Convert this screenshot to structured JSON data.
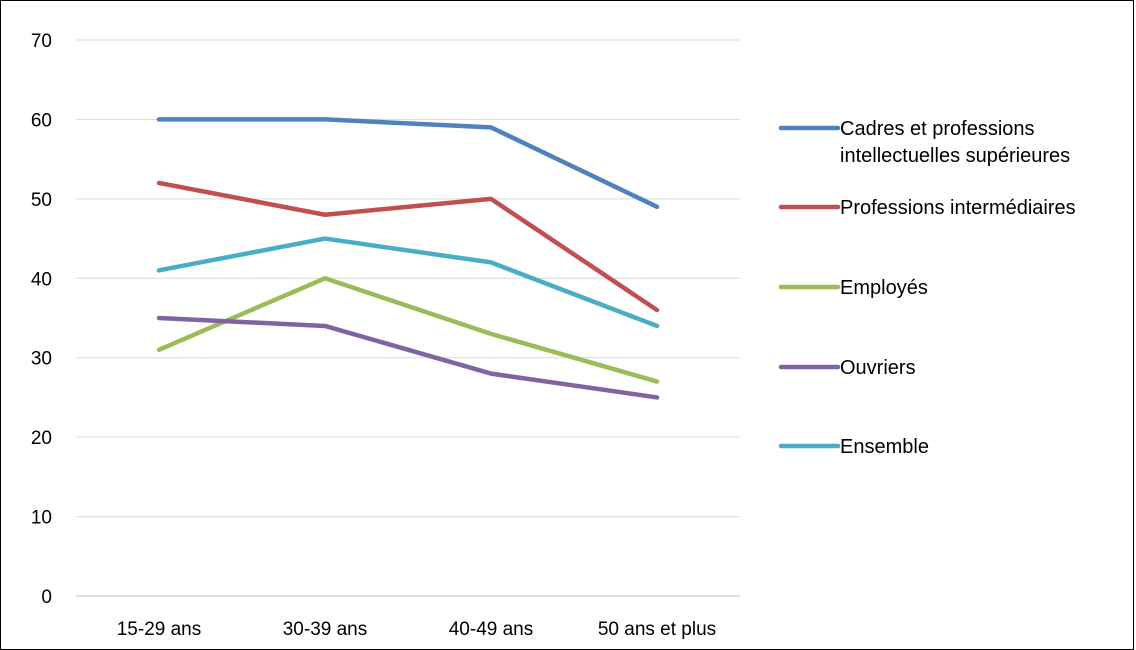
{
  "chart_data": {
    "type": "line",
    "categories": [
      "15-29 ans",
      "30-39 ans",
      "40-49 ans",
      "50 ans et plus"
    ],
    "series": [
      {
        "name": "Cadres et professions intellectuelles supérieures",
        "name_lines": [
          "Cadres et professions",
          "intellectuelles supérieures"
        ],
        "color": "#4F81BD",
        "values": [
          60,
          60,
          59,
          49
        ]
      },
      {
        "name": "Professions intermédiaires",
        "name_lines": [
          "Professions intermédiaires"
        ],
        "color": "#C0504D",
        "values": [
          52,
          48,
          50,
          36
        ]
      },
      {
        "name": "Employés",
        "name_lines": [
          "Employés"
        ],
        "color": "#9BBB59",
        "values": [
          31,
          40,
          33,
          27
        ]
      },
      {
        "name": "Ouvriers",
        "name_lines": [
          "Ouvriers"
        ],
        "color": "#8064A2",
        "values": [
          35,
          34,
          28,
          25
        ]
      },
      {
        "name": "Ensemble",
        "name_lines": [
          "Ensemble"
        ],
        "color": "#4BACC6",
        "values": [
          41,
          45,
          42,
          34
        ]
      }
    ],
    "ylim": [
      0,
      70
    ],
    "yticks": [
      "0",
      "10",
      "20",
      "30",
      "40",
      "50",
      "60",
      "70"
    ],
    "grid": true,
    "legend_position": "right"
  }
}
